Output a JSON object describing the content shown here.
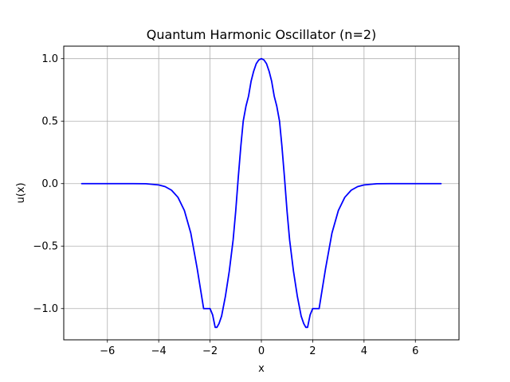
{
  "chart_data": {
    "type": "line",
    "title": "Quantum Harmonic Oscillator (n=2)",
    "xlabel": "x",
    "ylabel": "u(x)",
    "xlim": [
      -7.7,
      7.7
    ],
    "ylim": [
      -1.25,
      1.1
    ],
    "xticks": [
      -6,
      -4,
      -2,
      0,
      2,
      4,
      6
    ],
    "xtick_labels": [
      "−6",
      "−4",
      "−2",
      "0",
      "2",
      "4",
      "6"
    ],
    "yticks": [
      -1.0,
      -0.5,
      0.0,
      0.5,
      1.0
    ],
    "ytick_labels": [
      "−1.0",
      "−0.5",
      "0.0",
      "0.5",
      "1.0"
    ],
    "grid": true,
    "legend": false,
    "series": [
      {
        "color": "#0000ff",
        "x": [
          -7.0,
          -6.5,
          -6.0,
          -5.5,
          -5.0,
          -4.5,
          -4.0,
          -3.75,
          -3.5,
          -3.25,
          -3.0,
          -2.75,
          -2.5,
          -2.25,
          -2.0,
          -1.9,
          -1.8,
          -1.732,
          -1.65,
          -1.55,
          -1.4,
          -1.25,
          -1.1,
          -1.0,
          -0.9,
          -0.8,
          -0.707,
          -0.6,
          -0.5,
          -0.4,
          -0.3,
          -0.2,
          -0.1,
          0.0,
          0.1,
          0.2,
          0.3,
          0.4,
          0.5,
          0.6,
          0.707,
          0.8,
          0.9,
          1.0,
          1.1,
          1.25,
          1.4,
          1.55,
          1.65,
          1.732,
          1.8,
          1.9,
          2.0,
          2.25,
          2.5,
          2.75,
          3.0,
          3.25,
          3.5,
          3.75,
          4.0,
          4.5,
          5.0,
          5.5,
          6.0,
          6.5,
          7.0
        ],
        "y": [
          0.0,
          0.0,
          0.0,
          0.0,
          -0.0001,
          -0.001,
          -0.0104,
          -0.0239,
          -0.0526,
          -0.1096,
          -0.215,
          -0.3959,
          -0.681,
          -1.0,
          -1.0,
          -1.05,
          -1.15,
          -1.15,
          -1.12,
          -1.06,
          -0.9,
          -0.7,
          -0.45,
          -0.22,
          0.05,
          0.3,
          0.5,
          0.62,
          0.7,
          0.82,
          0.9,
          0.96,
          0.99,
          1.0,
          0.99,
          0.96,
          0.9,
          0.82,
          0.7,
          0.62,
          0.5,
          0.3,
          0.05,
          -0.22,
          -0.45,
          -0.7,
          -0.9,
          -1.06,
          -1.12,
          -1.15,
          -1.15,
          -1.05,
          -1.0,
          -1.0,
          -0.681,
          -0.3959,
          -0.215,
          -0.1096,
          -0.0526,
          -0.0239,
          -0.0104,
          -0.001,
          -0.0001,
          0.0,
          0.0,
          0.0,
          0.0
        ]
      }
    ]
  }
}
